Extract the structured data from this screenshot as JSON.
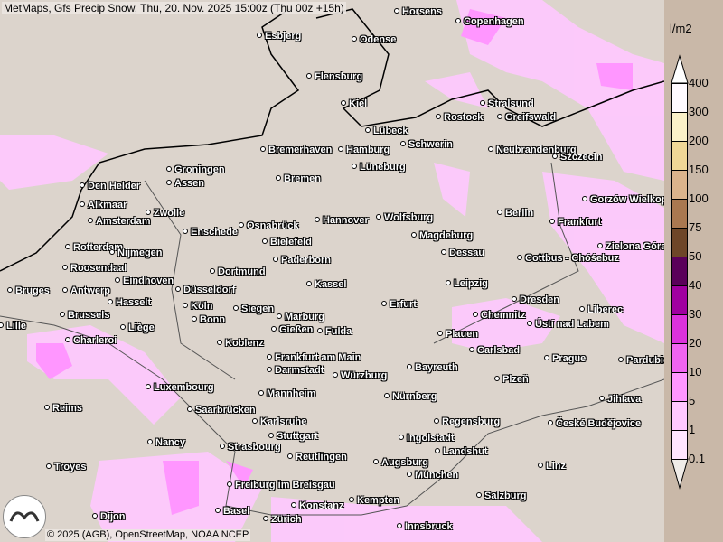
{
  "title": "MetMaps, Gfs Precip Snow, Thu, 20. Nov. 2025 15:00z (Thu 00z +15h)",
  "credit": "© 2025 (AGB), OpenStreetMap, NOAA NCEP",
  "logo": "MetMaps",
  "legend": {
    "unit": "l/m2",
    "labels": [
      "400",
      "300",
      "200",
      "150",
      "100",
      "75",
      "50",
      "40",
      "30",
      "20",
      "10",
      "5",
      "1",
      "0.1"
    ],
    "colors": [
      "#ffffff",
      "#fffaff",
      "#faf0c8",
      "#f0d796",
      "#dcb48c",
      "#aa7850",
      "#6e4628",
      "#5a005a",
      "#a000a0",
      "#dc32dc",
      "#f064f0",
      "#ff96ff",
      "#ffc8ff",
      "#ffe6ff",
      "#f0ece8"
    ]
  },
  "colors": {
    "land": "#dcd4cc",
    "precip_light": "#ffe6ff",
    "precip_mid": "#ffc8ff",
    "precip_heavy": "#f064f0"
  },
  "cities": [
    "Horsens",
    "Copenhagen",
    "Esbjerg",
    "Odense",
    "Flensburg",
    "Stralsund",
    "Kiel",
    "Rostock",
    "Greifswald",
    "Lübeck",
    "Schwerin",
    "Neubrandenburg",
    "Bremerhaven",
    "Hamburg",
    "Szczecin",
    "Groningen",
    "Lüneburg",
    "Assen",
    "Den Helder",
    "Bremen",
    "Gorzów Wielkopolski",
    "Alkmaar",
    "Zwolle",
    "Berlin",
    "Amsterdam",
    "Hannover",
    "Wolfsburg",
    "Frankfurt",
    "Enschede",
    "Osnabrück",
    "Magdeburg",
    "Rotterdam",
    "Nijmegen",
    "Bielefeld",
    "Zielona Góra",
    "Dessau",
    "Roosendaal",
    "Eindhoven",
    "Dortmund",
    "Paderborn",
    "Cottbus - Chóśebuz",
    "Bruges",
    "Antwerp",
    "Düsseldorf",
    "Kassel",
    "Leipzig",
    "Dresden",
    "Hasselt",
    "Brussels",
    "Köln",
    "Erfurt",
    "Siegen",
    "Marburg",
    "Chemnitz",
    "Liberec",
    "Lille",
    "Liège",
    "Bonn",
    "Ústí nad Labem",
    "Gießen",
    "Fulda",
    "Plauen",
    "Charleroi",
    "Koblenz",
    "Carlsbad",
    "Frankfurt am Main",
    "Prague",
    "Pardubice",
    "Bayreuth",
    "Darmstadt",
    "Würzburg",
    "Plzeň",
    "Luxembourg",
    "Mannheim",
    "Nürnberg",
    "Jihlava",
    "Reims",
    "Saarbrücken",
    "Karlsruhe",
    "Regensburg",
    "České Budějovice",
    "Stuttgart",
    "Ingolstadt",
    "Nancy",
    "Strasbourg",
    "Landshut",
    "Reutlingen",
    "Troyes",
    "Augsburg",
    "Linz",
    "München",
    "Freiburg im Breisgau",
    "Salzburg",
    "Kempten",
    "Konstanz",
    "Basel",
    "Zürich",
    "Innsbruck",
    "Dijon"
  ]
}
